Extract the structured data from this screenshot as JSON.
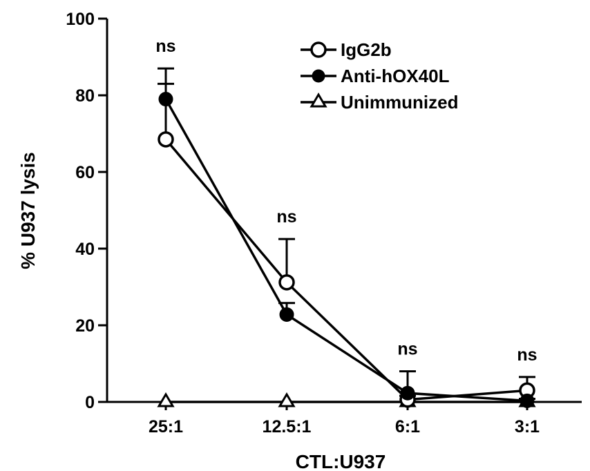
{
  "chart_data": {
    "type": "line",
    "title": "",
    "xlabel": "CTL:U937",
    "ylabel": "% U937 lysis",
    "categories": [
      "25:1",
      "12.5:1",
      "6:1",
      "3:1"
    ],
    "ylim": [
      0,
      100
    ],
    "yticks": [
      0,
      20,
      40,
      60,
      80,
      100
    ],
    "grid": false,
    "legend_position": "top-right",
    "series": [
      {
        "name": "IgG2b",
        "marker": "open-circle",
        "values": [
          68.5,
          31.2,
          0.6,
          3.0
        ],
        "error": [
          14.5,
          11.3,
          1.0,
          3.5
        ]
      },
      {
        "name": "Anti-hOX40L",
        "marker": "filled-circle",
        "values": [
          79.0,
          22.8,
          2.3,
          0.3
        ],
        "error": [
          8.0,
          3.0,
          5.7,
          0.5
        ]
      },
      {
        "name": "Unimmunized",
        "marker": "open-triangle",
        "values": [
          0,
          0,
          0,
          0
        ],
        "error": [
          0,
          0,
          0,
          0
        ]
      }
    ],
    "annotations": [
      {
        "category": "25:1",
        "text": "ns"
      },
      {
        "category": "12.5:1",
        "text": "ns"
      },
      {
        "category": "6:1",
        "text": "ns"
      },
      {
        "category": "3:1",
        "text": "ns"
      }
    ]
  }
}
